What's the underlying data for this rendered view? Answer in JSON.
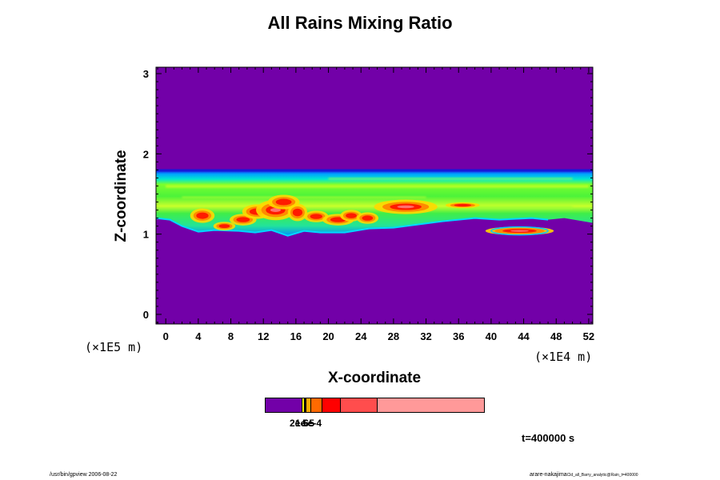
{
  "chart_data": {
    "type": "heatmap",
    "title": "All Rains Mixing Ratio",
    "xlabel": "X-coordinate",
    "ylabel": "Z-coordinate",
    "x_scale_label": "(×1E4 m)",
    "y_scale_label": "(×1E5 m)",
    "xlim": [
      -1.2,
      52.5
    ],
    "ylim": [
      -0.12,
      3.08
    ],
    "x_ticks": [
      "0",
      "4",
      "8",
      "12",
      "16",
      "20",
      "24",
      "28",
      "32",
      "36",
      "40",
      "44",
      "48",
      "52"
    ],
    "y_ticks": [
      "0",
      "1",
      "2",
      "3"
    ],
    "background_color": "#7200a8",
    "colorbar": {
      "colors": [
        "#7200a8",
        "#ffee00",
        "#ffa800",
        "#ff6a00",
        "#ff0000",
        "#ff4d4d",
        "#ff9999"
      ],
      "labels": [
        "2e-6",
        "1e-5",
        "5e-4"
      ]
    },
    "rain_layer": {
      "z_bottom": 1.0,
      "z_top": 1.8
    }
  },
  "footer": {
    "time": "t=400000 s",
    "left": "/usr/bin/gpview 2006-08-22",
    "right_main": "arare-nakajima",
    "right_small": "Cld_all_Barry_analytic@Rain_t=400000"
  }
}
